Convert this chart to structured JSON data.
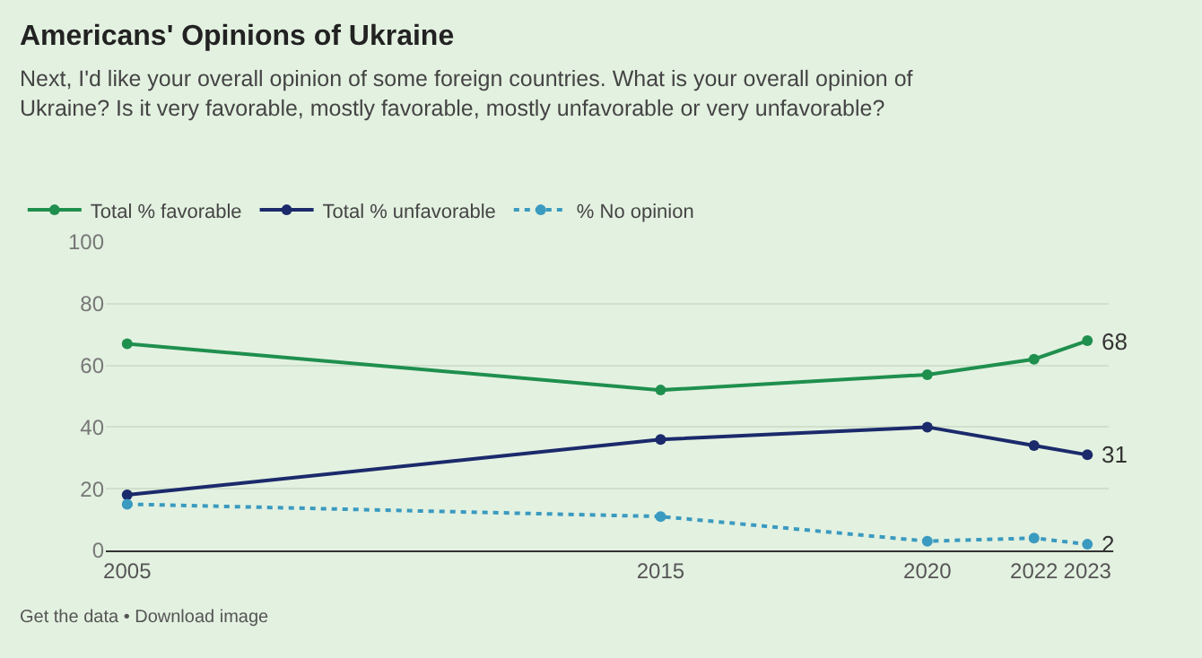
{
  "chart_data": {
    "type": "line",
    "title": "Americans' Opinions of Ukraine",
    "subtitle": "Next, I'd like your overall opinion of some foreign countries. What is your overall opinion of Ukraine? Is it very favorable, mostly favorable, mostly unfavorable or very unfavorable?",
    "x": [
      2005,
      2015,
      2020,
      2022,
      2023
    ],
    "series": [
      {
        "name": "Total % favorable",
        "color": "#1f8f4e",
        "values": [
          67,
          52,
          57,
          62,
          68
        ],
        "value_labels": [
          null,
          null,
          null,
          null,
          "68"
        ],
        "line_style": "solid"
      },
      {
        "name": "Total % unfavorable",
        "color": "#1b2a6b",
        "values": [
          18,
          36,
          40,
          34,
          31
        ],
        "value_labels": [
          null,
          null,
          null,
          null,
          "31"
        ],
        "line_style": "solid"
      },
      {
        "name": "% No opinion",
        "color": "#3a9ac0",
        "values": [
          15,
          11,
          3,
          4,
          2
        ],
        "value_labels": [
          null,
          null,
          null,
          null,
          "2"
        ],
        "line_style": "dotted"
      }
    ],
    "xlim": [
      2004.6,
      2023.4
    ],
    "xticks": [
      2005,
      2015,
      2020,
      2022,
      2023
    ],
    "ylim": [
      0,
      100
    ],
    "yticks": [
      0,
      20,
      40,
      60,
      80,
      100
    ],
    "grid": "y",
    "legend": "top left",
    "marker": "circle",
    "annotations": [
      "Get the data • Download image"
    ]
  }
}
